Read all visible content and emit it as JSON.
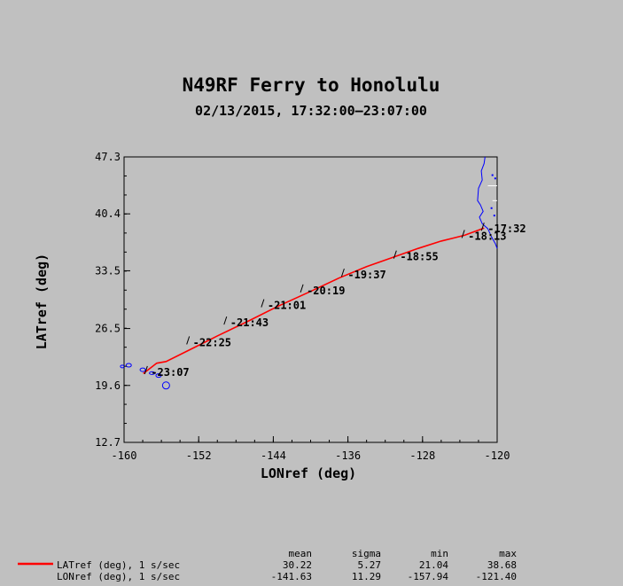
{
  "chart_data": {
    "type": "line",
    "title": "N49RF Ferry to Honolulu",
    "subtitle": "02/13/2015, 17:32:00–23:07:00",
    "xlabel": "LONref (deg)",
    "ylabel": "LATref (deg)",
    "xlim": [
      -160,
      -120
    ],
    "ylim": [
      12.7,
      47.3
    ],
    "x_ticks": [
      "-160",
      "-152",
      "-144",
      "-136",
      "-128",
      "-120"
    ],
    "y_ticks": [
      "47.3",
      "40.4",
      "33.5",
      "26.5",
      "19.6",
      "12.7"
    ],
    "grid": false,
    "legend_position": "bottom-left",
    "series": [
      {
        "name": "LATref (deg), 1 s/sec",
        "color": "#ff0000",
        "x": [
          -121.4,
          -123.5,
          -126,
          -128.5,
          -131,
          -134,
          -137,
          -140,
          -143.5,
          -146.5,
          -150,
          -153,
          -155.5,
          -156.5,
          -157.94
        ],
        "y": [
          38.68,
          37.8,
          37.1,
          36.2,
          35.2,
          34.0,
          32.6,
          31.0,
          29.2,
          27.5,
          25.6,
          23.9,
          22.5,
          22.3,
          21.04
        ]
      }
    ],
    "time_labels": [
      {
        "text": "17:32",
        "lon": -121.4,
        "lat": 38.68
      },
      {
        "text": "18:13",
        "lon": -123.5,
        "lat": 37.8
      },
      {
        "text": "18:55",
        "lon": -130.8,
        "lat": 35.3
      },
      {
        "text": "19:37",
        "lon": -136.4,
        "lat": 33.1
      },
      {
        "text": "20:19",
        "lon": -140.8,
        "lat": 31.2
      },
      {
        "text": "21:01",
        "lon": -145.0,
        "lat": 29.4
      },
      {
        "text": "21:43",
        "lon": -149.0,
        "lat": 27.3
      },
      {
        "text": "22:25",
        "lon": -153.0,
        "lat": 24.9
      },
      {
        "text": "23:07",
        "lon": -157.5,
        "lat": 21.3
      }
    ],
    "stats": {
      "headers": [
        "mean",
        "sigma",
        "min",
        "max"
      ],
      "rows": [
        {
          "label": "LATref (deg), 1 s/sec",
          "values": [
            "30.22",
            "5.27",
            "21.04",
            "38.68"
          ]
        },
        {
          "label": "LONref (deg), 1 s/sec",
          "values": [
            "-141.63",
            "11.29",
            "-157.94",
            "-121.40"
          ]
        }
      ]
    },
    "colors": {
      "background": "#c0c0c0",
      "plot_bg": "#c0c0c0",
      "track": "#ff0000",
      "coast": "#0000ff",
      "border": "#ffffff"
    }
  }
}
